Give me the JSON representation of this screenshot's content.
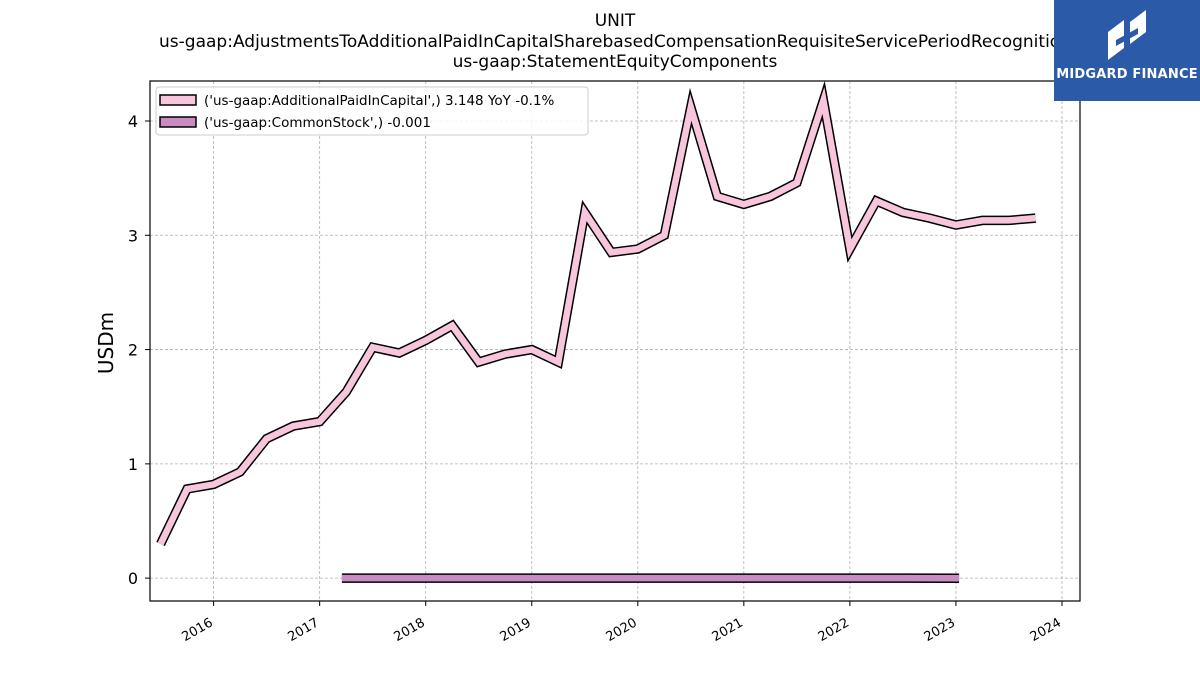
{
  "title_lines": [
    "UNIT",
    "us-gaap:AdjustmentsToAdditionalPaidInCapitalSharebasedCompensationRequisiteServicePeriodRecognition",
    "us-gaap:StatementEquityComponents"
  ],
  "logo": {
    "text": "MIDGARD FINANCE",
    "color": "#2b5aa8"
  },
  "chart_data": {
    "type": "line",
    "ylabel": "USDm",
    "xlabel": "",
    "ylim": [
      -0.2,
      4.35
    ],
    "xlim": [
      2015.4,
      2024.17
    ],
    "yticks": [
      0,
      1,
      2,
      3,
      4
    ],
    "xticks": [
      2016,
      2017,
      2018,
      2019,
      2020,
      2021,
      2022,
      2023,
      2024
    ],
    "grid": true,
    "legend_position": "top-left",
    "series": [
      {
        "name": "('us-gaap:AdditionalPaidInCapital',) 3.148 YoY -0.1%",
        "color": "#f7c6dc",
        "points": [
          [
            2015.5,
            0.3
          ],
          [
            2015.75,
            0.78
          ],
          [
            2016.0,
            0.82
          ],
          [
            2016.25,
            0.93
          ],
          [
            2016.5,
            1.22
          ],
          [
            2016.75,
            1.33
          ],
          [
            2017.0,
            1.37
          ],
          [
            2017.25,
            1.63
          ],
          [
            2017.5,
            2.02
          ],
          [
            2017.75,
            1.97
          ],
          [
            2018.0,
            2.08
          ],
          [
            2018.25,
            2.21
          ],
          [
            2018.5,
            1.89
          ],
          [
            2018.75,
            1.96
          ],
          [
            2019.0,
            2.0
          ],
          [
            2019.25,
            1.89
          ],
          [
            2019.5,
            3.2
          ],
          [
            2019.75,
            2.85
          ],
          [
            2020.0,
            2.88
          ],
          [
            2020.25,
            3.0
          ],
          [
            2020.5,
            4.12
          ],
          [
            2020.75,
            3.34
          ],
          [
            2021.0,
            3.27
          ],
          [
            2021.25,
            3.34
          ],
          [
            2021.5,
            3.46
          ],
          [
            2021.75,
            4.18
          ],
          [
            2022.0,
            2.88
          ],
          [
            2022.25,
            3.3
          ],
          [
            2022.5,
            3.2
          ],
          [
            2022.75,
            3.15
          ],
          [
            2023.0,
            3.09
          ],
          [
            2023.25,
            3.13
          ],
          [
            2023.5,
            3.13
          ],
          [
            2023.75,
            3.15
          ]
        ]
      },
      {
        "name": "('us-gaap:CommonStock',) -0.001",
        "color": "#c98bc2",
        "points": [
          [
            2017.21,
            0.0
          ],
          [
            2018.0,
            0.0
          ],
          [
            2019.0,
            0.0
          ],
          [
            2020.0,
            0.0
          ],
          [
            2021.0,
            0.0
          ],
          [
            2022.0,
            0.0
          ],
          [
            2022.5,
            0.0
          ],
          [
            2023.03,
            -0.001
          ]
        ]
      }
    ]
  }
}
